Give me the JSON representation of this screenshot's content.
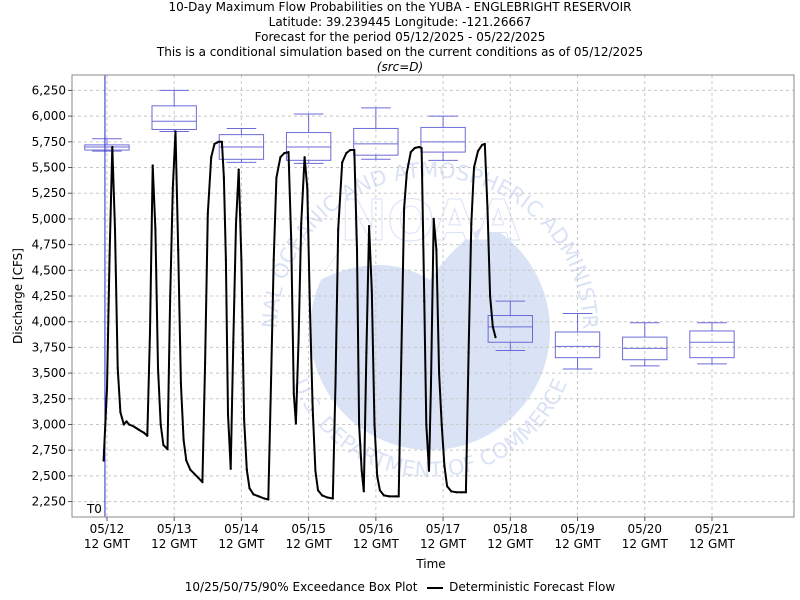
{
  "titles": {
    "line1": "10-Day Maximum Flow Probabilities on the YUBA - ENGLEBRIGHT RESERVOIR",
    "line2": "Latitude: 39.239445 Longitude: -121.26667",
    "line3": "Forecast for the period 05/12/2025 - 05/22/2025",
    "line4": "This is a conditional simulation based on the current conditions as of 05/12/2025",
    "line5": "(src=D)"
  },
  "chart_data": {
    "type": "line",
    "title": "10-Day Maximum Flow Probabilities on the YUBA - ENGLEBRIGHT RESERVOIR",
    "xlabel": "Time",
    "ylabel": "Discharge [CFS]",
    "ylim": [
      2100,
      6400
    ],
    "xlim": [
      -0.52,
      10.22
    ],
    "grid": true,
    "t0_label": "T0",
    "x_ticks": [
      {
        "pos": 0,
        "l1": "05/12",
        "l2": "12 GMT"
      },
      {
        "pos": 1,
        "l1": "05/13",
        "l2": "12 GMT"
      },
      {
        "pos": 2,
        "l1": "05/14",
        "l2": "12 GMT"
      },
      {
        "pos": 3,
        "l1": "05/15",
        "l2": "12 GMT"
      },
      {
        "pos": 4,
        "l1": "05/16",
        "l2": "12 GMT"
      },
      {
        "pos": 5,
        "l1": "05/17",
        "l2": "12 GMT"
      },
      {
        "pos": 6,
        "l1": "05/18",
        "l2": "12 GMT"
      },
      {
        "pos": 7,
        "l1": "05/19",
        "l2": "12 GMT"
      },
      {
        "pos": 8,
        "l1": "05/20",
        "l2": "12 GMT"
      },
      {
        "pos": 9,
        "l1": "05/21",
        "l2": "12 GMT"
      }
    ],
    "y_ticks": [
      {
        "v": 2250,
        "label": "2,250"
      },
      {
        "v": 2500,
        "label": "2,500"
      },
      {
        "v": 2750,
        "label": "2,750"
      },
      {
        "v": 3000,
        "label": "3,000"
      },
      {
        "v": 3250,
        "label": "3,250"
      },
      {
        "v": 3500,
        "label": "3,500"
      },
      {
        "v": 3750,
        "label": "3,750"
      },
      {
        "v": 4000,
        "label": "4,000"
      },
      {
        "v": 4250,
        "label": "4,250"
      },
      {
        "v": 4500,
        "label": "4,500"
      },
      {
        "v": 4750,
        "label": "4,750"
      },
      {
        "v": 5000,
        "label": "5,000"
      },
      {
        "v": 5250,
        "label": "5,250"
      },
      {
        "v": 5500,
        "label": "5,500"
      },
      {
        "v": 5750,
        "label": "5,750"
      },
      {
        "v": 6000,
        "label": "6,000"
      },
      {
        "v": 6250,
        "label": "6,250"
      }
    ],
    "boxes": [
      {
        "x": 0.0,
        "p10": 5660,
        "p25": 5670,
        "p50": 5700,
        "p75": 5720,
        "p90": 5780
      },
      {
        "x": 1.0,
        "p10": 5850,
        "p25": 5870,
        "p50": 5950,
        "p75": 6100,
        "p90": 6250
      },
      {
        "x": 2.0,
        "p10": 5550,
        "p25": 5580,
        "p50": 5700,
        "p75": 5820,
        "p90": 5880
      },
      {
        "x": 3.0,
        "p10": 5540,
        "p25": 5570,
        "p50": 5700,
        "p75": 5840,
        "p90": 6020
      },
      {
        "x": 4.0,
        "p10": 5580,
        "p25": 5620,
        "p50": 5730,
        "p75": 5880,
        "p90": 6080
      },
      {
        "x": 5.0,
        "p10": 5570,
        "p25": 5650,
        "p50": 5750,
        "p75": 5890,
        "p90": 6000
      },
      {
        "x": 6.0,
        "p10": 3720,
        "p25": 3800,
        "p50": 3950,
        "p75": 4060,
        "p90": 4200
      },
      {
        "x": 7.0,
        "p10": 3540,
        "p25": 3650,
        "p50": 3760,
        "p75": 3900,
        "p90": 4080
      },
      {
        "x": 8.0,
        "p10": 3570,
        "p25": 3630,
        "p50": 3740,
        "p75": 3850,
        "p90": 3990
      },
      {
        "x": 9.0,
        "p10": 3590,
        "p25": 3650,
        "p50": 3800,
        "p75": 3910,
        "p90": 3990
      }
    ],
    "series": [
      {
        "name": "Deterministic Forecast Flow",
        "color": "#000000",
        "points": [
          [
            -0.05,
            2650
          ],
          [
            0.0,
            3350
          ],
          [
            0.04,
            4650
          ],
          [
            0.08,
            5700
          ],
          [
            0.12,
            4900
          ],
          [
            0.16,
            3550
          ],
          [
            0.2,
            3120
          ],
          [
            0.25,
            3000
          ],
          [
            0.29,
            3030
          ],
          [
            0.33,
            3000
          ],
          [
            0.4,
            2980
          ],
          [
            0.47,
            2950
          ],
          [
            0.55,
            2920
          ],
          [
            0.6,
            2890
          ],
          [
            0.64,
            3900
          ],
          [
            0.68,
            5520
          ],
          [
            0.72,
            4900
          ],
          [
            0.76,
            3550
          ],
          [
            0.8,
            3000
          ],
          [
            0.84,
            2800
          ],
          [
            0.9,
            2760
          ],
          [
            0.94,
            4200
          ],
          [
            0.98,
            5300
          ],
          [
            1.02,
            5850
          ],
          [
            1.06,
            4700
          ],
          [
            1.1,
            3400
          ],
          [
            1.14,
            2850
          ],
          [
            1.18,
            2650
          ],
          [
            1.24,
            2560
          ],
          [
            1.3,
            2520
          ],
          [
            1.36,
            2480
          ],
          [
            1.42,
            2440
          ],
          [
            1.46,
            3600
          ],
          [
            1.5,
            5050
          ],
          [
            1.55,
            5600
          ],
          [
            1.6,
            5730
          ],
          [
            1.66,
            5750
          ],
          [
            1.71,
            5750
          ],
          [
            1.74,
            5400
          ],
          [
            1.77,
            4600
          ],
          [
            1.8,
            3100
          ],
          [
            1.84,
            2570
          ],
          [
            1.88,
            3800
          ],
          [
            1.92,
            4950
          ],
          [
            1.96,
            5480
          ],
          [
            2.0,
            4600
          ],
          [
            2.04,
            3050
          ],
          [
            2.08,
            2560
          ],
          [
            2.12,
            2380
          ],
          [
            2.18,
            2320
          ],
          [
            2.26,
            2300
          ],
          [
            2.34,
            2280
          ],
          [
            2.4,
            2270
          ],
          [
            2.44,
            3400
          ],
          [
            2.48,
            4600
          ],
          [
            2.52,
            5400
          ],
          [
            2.58,
            5600
          ],
          [
            2.64,
            5640
          ],
          [
            2.7,
            5650
          ],
          [
            2.74,
            4800
          ],
          [
            2.78,
            3300
          ],
          [
            2.81,
            3010
          ],
          [
            2.85,
            3800
          ],
          [
            2.89,
            4950
          ],
          [
            2.94,
            5600
          ],
          [
            2.98,
            5300
          ],
          [
            3.02,
            4100
          ],
          [
            3.06,
            3150
          ],
          [
            3.1,
            2550
          ],
          [
            3.14,
            2360
          ],
          [
            3.2,
            2310
          ],
          [
            3.28,
            2290
          ],
          [
            3.36,
            2280
          ],
          [
            3.4,
            3400
          ],
          [
            3.44,
            4900
          ],
          [
            3.5,
            5550
          ],
          [
            3.56,
            5640
          ],
          [
            3.62,
            5670
          ],
          [
            3.68,
            5670
          ],
          [
            3.72,
            4700
          ],
          [
            3.75,
            3000
          ],
          [
            3.79,
            2550
          ],
          [
            3.82,
            2350
          ],
          [
            3.86,
            3700
          ],
          [
            3.9,
            4930
          ],
          [
            3.94,
            4300
          ],
          [
            3.98,
            3000
          ],
          [
            4.02,
            2500
          ],
          [
            4.06,
            2360
          ],
          [
            4.12,
            2310
          ],
          [
            4.2,
            2300
          ],
          [
            4.3,
            2300
          ],
          [
            4.34,
            2300
          ],
          [
            4.38,
            3700
          ],
          [
            4.42,
            5100
          ],
          [
            4.46,
            5450
          ],
          [
            4.52,
            5650
          ],
          [
            4.58,
            5690
          ],
          [
            4.64,
            5700
          ],
          [
            4.68,
            5690
          ],
          [
            4.72,
            4200
          ],
          [
            4.75,
            3000
          ],
          [
            4.79,
            2550
          ],
          [
            4.82,
            3400
          ],
          [
            4.86,
            5000
          ],
          [
            4.9,
            4700
          ],
          [
            4.94,
            3500
          ],
          [
            4.98,
            3000
          ],
          [
            5.02,
            2600
          ],
          [
            5.06,
            2400
          ],
          [
            5.12,
            2350
          ],
          [
            5.2,
            2340
          ],
          [
            5.28,
            2340
          ],
          [
            5.34,
            2340
          ],
          [
            5.38,
            3700
          ],
          [
            5.42,
            4950
          ],
          [
            5.46,
            5500
          ],
          [
            5.52,
            5660
          ],
          [
            5.58,
            5720
          ],
          [
            5.62,
            5730
          ],
          [
            5.66,
            5100
          ],
          [
            5.7,
            4250
          ],
          [
            5.74,
            3950
          ],
          [
            5.78,
            3850
          ]
        ]
      }
    ],
    "legend": {
      "box_label": "10/25/50/75/90% Exceedance Box Plot",
      "line_label": "Deterministic Forecast Flow"
    },
    "colors": {
      "box": "#6b6bd8",
      "t0_line": "#2a2ad0",
      "grid": "#c8c8c8",
      "watermark": "#5b7fd6"
    },
    "watermark_text": {
      "top_arc": "NATIONAL OCEANIC AND ATMOSPHERIC ADMINISTRATION",
      "bottom_arc": "U.S. DEPARTMENT OF COMMERCE",
      "center": "NOAA"
    }
  }
}
